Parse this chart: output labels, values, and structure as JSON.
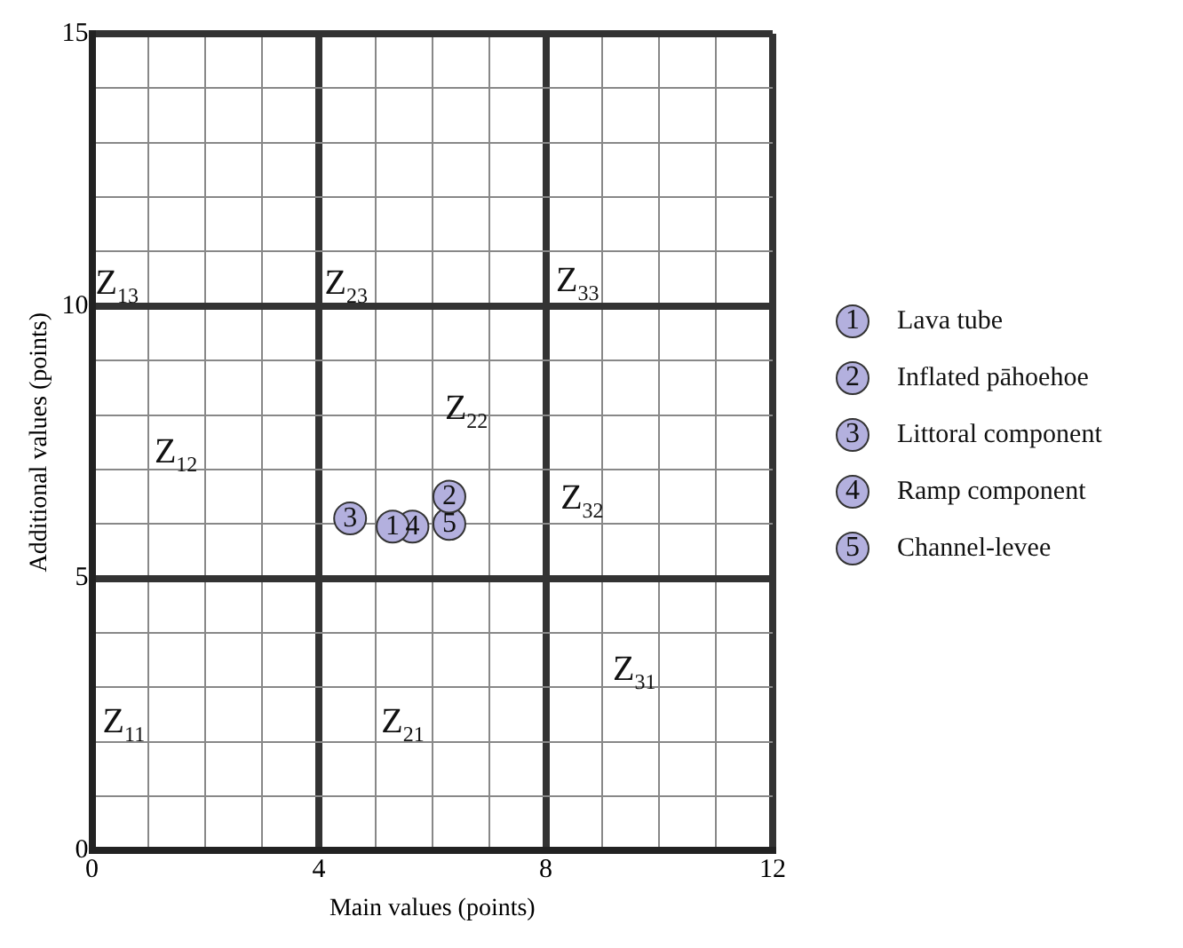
{
  "chart_data": {
    "type": "scatter",
    "xlabel": "Main values (points)",
    "ylabel": "Additional values (points)",
    "xlim": [
      0,
      12
    ],
    "ylim": [
      0,
      15
    ],
    "xticks": [
      0,
      {
        "value": 1,
        "label": null
      },
      {
        "value": 2,
        "label": null
      },
      {
        "value": 3,
        "label": null
      },
      4,
      {
        "value": 5,
        "label": null
      },
      {
        "value": 6,
        "label": null
      },
      {
        "value": 7,
        "label": null
      },
      8,
      {
        "value": 9,
        "label": null
      },
      {
        "value": 10,
        "label": null
      },
      {
        "value": 11,
        "label": null
      },
      12
    ],
    "yticks": [
      0,
      {
        "value": 1,
        "label": null
      },
      {
        "value": 2,
        "label": null
      },
      {
        "value": 3,
        "label": null
      },
      {
        "value": 4,
        "label": null
      },
      5,
      {
        "value": 6,
        "label": null
      },
      {
        "value": 7,
        "label": null
      },
      {
        "value": 8,
        "label": null
      },
      {
        "value": 9,
        "label": null
      },
      10,
      {
        "value": 11,
        "label": null
      },
      {
        "value": 12,
        "label": null
      },
      {
        "value": 13,
        "label": null
      },
      {
        "value": 14,
        "label": null
      },
      15
    ],
    "grid": true,
    "legend": "right",
    "marker": "circle",
    "series": [
      {
        "name": "Lava tube",
        "color": "#b3b0de",
        "x": [
          5.3
        ],
        "values": [
          5.95
        ]
      },
      {
        "name": "Inflated pāhoehoe",
        "color": "#b3b0de",
        "x": [
          6.3
        ],
        "values": [
          6.5
        ]
      },
      {
        "name": "Littoral component",
        "color": "#b3b0de",
        "x": [
          4.55
        ],
        "values": [
          6.1
        ]
      },
      {
        "name": "Ramp component",
        "color": "#b3b0de",
        "x": [
          5.65
        ],
        "values": [
          5.95
        ]
      },
      {
        "name": "Channel-levee",
        "color": "#b3b0de",
        "x": [
          6.3
        ],
        "values": [
          6.0
        ]
      }
    ],
    "annotations": [
      {
        "text": "1",
        "x": 5.3,
        "y": 5.95
      },
      {
        "text": "2",
        "x": 6.3,
        "y": 6.5
      },
      {
        "text": "3",
        "x": 4.55,
        "y": 6.1
      },
      {
        "text": "4",
        "x": 5.65,
        "y": 5.95
      },
      {
        "text": "5",
        "x": 6.3,
        "y": 6.0
      },
      "Z$_{11}$",
      "Z$_{12}$",
      "Z$_{13}$",
      "Z$_{21}$",
      "Z$_{22}$",
      "Z$_{23}$",
      "Z$_{31}$",
      "Z$_{32}$",
      "Z$_{33}$"
    ]
  }
}
